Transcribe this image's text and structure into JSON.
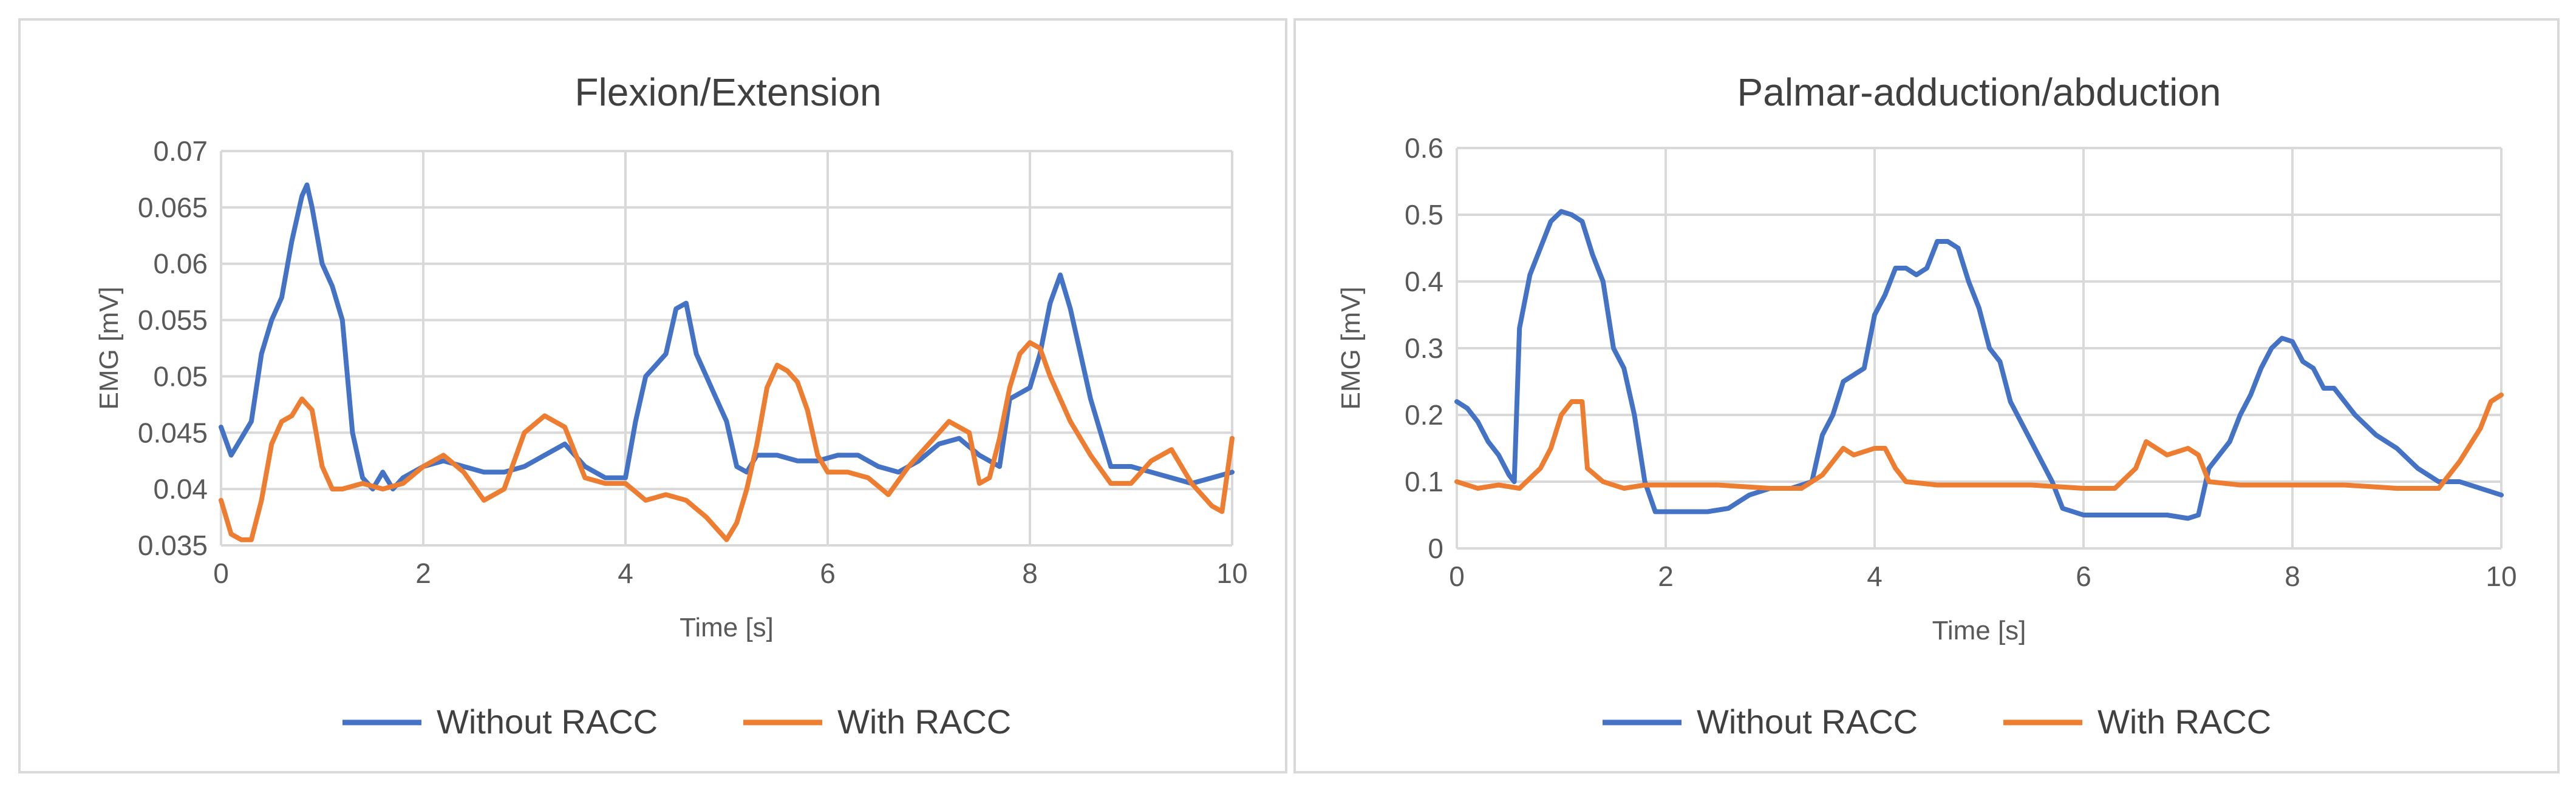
{
  "chart_data": [
    {
      "type": "line",
      "title": "Flexion/Extension",
      "xlabel": "Time [s]",
      "ylabel": "EMG [mV]",
      "xlim": [
        0,
        10
      ],
      "ylim": [
        0.035,
        0.07
      ],
      "x_ticks": [
        0,
        2,
        4,
        6,
        8,
        10
      ],
      "y_ticks": [
        0.035,
        0.04,
        0.045,
        0.05,
        0.055,
        0.06,
        0.065,
        0.07
      ],
      "x_tick_labels": [
        "0",
        "2",
        "4",
        "6",
        "8",
        "10"
      ],
      "y_tick_labels": [
        "0.035",
        "0.04",
        "0.045",
        "0.05",
        "0.055",
        "0.06",
        "0.065",
        "0.07"
      ],
      "grid": true,
      "legend_position": "bottom",
      "series": [
        {
          "name": "Without RACC",
          "color": "#4472c4",
          "points": [
            [
              0,
              0.0455
            ],
            [
              0.1,
              0.043
            ],
            [
              0.2,
              0.0445
            ],
            [
              0.3,
              0.046
            ],
            [
              0.4,
              0.052
            ],
            [
              0.5,
              0.055
            ],
            [
              0.6,
              0.057
            ],
            [
              0.7,
              0.062
            ],
            [
              0.8,
              0.066
            ],
            [
              0.85,
              0.067
            ],
            [
              0.9,
              0.065
            ],
            [
              1.0,
              0.06
            ],
            [
              1.1,
              0.058
            ],
            [
              1.2,
              0.055
            ],
            [
              1.3,
              0.045
            ],
            [
              1.4,
              0.041
            ],
            [
              1.5,
              0.04
            ],
            [
              1.6,
              0.0415
            ],
            [
              1.7,
              0.04
            ],
            [
              1.8,
              0.041
            ],
            [
              2.0,
              0.042
            ],
            [
              2.2,
              0.0425
            ],
            [
              2.4,
              0.042
            ],
            [
              2.6,
              0.0415
            ],
            [
              2.8,
              0.0415
            ],
            [
              3.0,
              0.042
            ],
            [
              3.2,
              0.043
            ],
            [
              3.4,
              0.044
            ],
            [
              3.6,
              0.042
            ],
            [
              3.8,
              0.041
            ],
            [
              4.0,
              0.041
            ],
            [
              4.1,
              0.046
            ],
            [
              4.2,
              0.05
            ],
            [
              4.3,
              0.051
            ],
            [
              4.4,
              0.052
            ],
            [
              4.5,
              0.056
            ],
            [
              4.6,
              0.0565
            ],
            [
              4.7,
              0.052
            ],
            [
              4.8,
              0.05
            ],
            [
              4.9,
              0.048
            ],
            [
              5.0,
              0.046
            ],
            [
              5.1,
              0.042
            ],
            [
              5.2,
              0.0415
            ],
            [
              5.3,
              0.043
            ],
            [
              5.5,
              0.043
            ],
            [
              5.7,
              0.0425
            ],
            [
              5.9,
              0.0425
            ],
            [
              6.1,
              0.043
            ],
            [
              6.3,
              0.043
            ],
            [
              6.5,
              0.042
            ],
            [
              6.7,
              0.0415
            ],
            [
              6.9,
              0.0425
            ],
            [
              7.1,
              0.044
            ],
            [
              7.3,
              0.0445
            ],
            [
              7.5,
              0.043
            ],
            [
              7.7,
              0.042
            ],
            [
              7.8,
              0.048
            ],
            [
              8.0,
              0.049
            ],
            [
              8.1,
              0.052
            ],
            [
              8.2,
              0.0565
            ],
            [
              8.3,
              0.059
            ],
            [
              8.4,
              0.056
            ],
            [
              8.5,
              0.052
            ],
            [
              8.6,
              0.048
            ],
            [
              8.7,
              0.045
            ],
            [
              8.8,
              0.042
            ],
            [
              9.0,
              0.042
            ],
            [
              9.2,
              0.0415
            ],
            [
              9.4,
              0.041
            ],
            [
              9.6,
              0.0405
            ],
            [
              9.8,
              0.041
            ],
            [
              10.0,
              0.0415
            ]
          ]
        },
        {
          "name": "With RACC",
          "color": "#ed7d31",
          "points": [
            [
              0,
              0.039
            ],
            [
              0.1,
              0.036
            ],
            [
              0.2,
              0.0355
            ],
            [
              0.3,
              0.0355
            ],
            [
              0.4,
              0.039
            ],
            [
              0.5,
              0.044
            ],
            [
              0.6,
              0.046
            ],
            [
              0.7,
              0.0465
            ],
            [
              0.8,
              0.048
            ],
            [
              0.9,
              0.047
            ],
            [
              1.0,
              0.042
            ],
            [
              1.1,
              0.04
            ],
            [
              1.2,
              0.04
            ],
            [
              1.4,
              0.0405
            ],
            [
              1.6,
              0.04
            ],
            [
              1.8,
              0.0405
            ],
            [
              2.0,
              0.042
            ],
            [
              2.2,
              0.043
            ],
            [
              2.4,
              0.0415
            ],
            [
              2.6,
              0.039
            ],
            [
              2.8,
              0.04
            ],
            [
              3.0,
              0.045
            ],
            [
              3.2,
              0.0465
            ],
            [
              3.4,
              0.0455
            ],
            [
              3.6,
              0.041
            ],
            [
              3.8,
              0.0405
            ],
            [
              4.0,
              0.0405
            ],
            [
              4.2,
              0.039
            ],
            [
              4.4,
              0.0395
            ],
            [
              4.6,
              0.039
            ],
            [
              4.8,
              0.0375
            ],
            [
              5.0,
              0.0355
            ],
            [
              5.1,
              0.037
            ],
            [
              5.2,
              0.04
            ],
            [
              5.3,
              0.044
            ],
            [
              5.4,
              0.049
            ],
            [
              5.5,
              0.051
            ],
            [
              5.6,
              0.0505
            ],
            [
              5.7,
              0.0495
            ],
            [
              5.8,
              0.047
            ],
            [
              5.9,
              0.043
            ],
            [
              6.0,
              0.0415
            ],
            [
              6.2,
              0.0415
            ],
            [
              6.4,
              0.041
            ],
            [
              6.6,
              0.0395
            ],
            [
              6.8,
              0.042
            ],
            [
              7.0,
              0.044
            ],
            [
              7.2,
              0.046
            ],
            [
              7.4,
              0.045
            ],
            [
              7.5,
              0.0405
            ],
            [
              7.6,
              0.041
            ],
            [
              7.7,
              0.0445
            ],
            [
              7.8,
              0.049
            ],
            [
              7.9,
              0.052
            ],
            [
              8.0,
              0.053
            ],
            [
              8.1,
              0.0525
            ],
            [
              8.2,
              0.05
            ],
            [
              8.4,
              0.046
            ],
            [
              8.6,
              0.043
            ],
            [
              8.8,
              0.0405
            ],
            [
              9.0,
              0.0405
            ],
            [
              9.2,
              0.0425
            ],
            [
              9.4,
              0.0435
            ],
            [
              9.6,
              0.0405
            ],
            [
              9.8,
              0.0385
            ],
            [
              9.9,
              0.038
            ],
            [
              10.0,
              0.0445
            ]
          ]
        }
      ]
    },
    {
      "type": "line",
      "title": "Palmar-adduction/abduction",
      "xlabel": "Time [s]",
      "ylabel": "EMG [mV]",
      "xlim": [
        0,
        10
      ],
      "ylim": [
        0,
        0.6
      ],
      "x_ticks": [
        0,
        2,
        4,
        6,
        8,
        10
      ],
      "y_ticks": [
        0,
        0.1,
        0.2,
        0.3,
        0.4,
        0.5,
        0.6
      ],
      "x_tick_labels": [
        "0",
        "2",
        "4",
        "6",
        "8",
        "10"
      ],
      "y_tick_labels": [
        "0",
        "0.1",
        "0.2",
        "0.3",
        "0.4",
        "0.5",
        "0.6"
      ],
      "grid": true,
      "legend_position": "bottom",
      "series": [
        {
          "name": "Without RACC",
          "color": "#4472c4",
          "points": [
            [
              0,
              0.22
            ],
            [
              0.1,
              0.21
            ],
            [
              0.2,
              0.19
            ],
            [
              0.3,
              0.16
            ],
            [
              0.4,
              0.14
            ],
            [
              0.5,
              0.11
            ],
            [
              0.55,
              0.1
            ],
            [
              0.6,
              0.33
            ],
            [
              0.7,
              0.41
            ],
            [
              0.8,
              0.45
            ],
            [
              0.9,
              0.49
            ],
            [
              1.0,
              0.505
            ],
            [
              1.1,
              0.5
            ],
            [
              1.2,
              0.49
            ],
            [
              1.3,
              0.44
            ],
            [
              1.4,
              0.4
            ],
            [
              1.5,
              0.3
            ],
            [
              1.6,
              0.27
            ],
            [
              1.7,
              0.2
            ],
            [
              1.8,
              0.1
            ],
            [
              1.9,
              0.055
            ],
            [
              2.0,
              0.055
            ],
            [
              2.2,
              0.055
            ],
            [
              2.4,
              0.055
            ],
            [
              2.6,
              0.06
            ],
            [
              2.8,
              0.08
            ],
            [
              3.0,
              0.09
            ],
            [
              3.2,
              0.09
            ],
            [
              3.4,
              0.1
            ],
            [
              3.5,
              0.17
            ],
            [
              3.6,
              0.2
            ],
            [
              3.7,
              0.25
            ],
            [
              3.8,
              0.26
            ],
            [
              3.9,
              0.27
            ],
            [
              4.0,
              0.35
            ],
            [
              4.1,
              0.38
            ],
            [
              4.2,
              0.42
            ],
            [
              4.3,
              0.42
            ],
            [
              4.4,
              0.41
            ],
            [
              4.5,
              0.42
            ],
            [
              4.6,
              0.46
            ],
            [
              4.7,
              0.46
            ],
            [
              4.8,
              0.45
            ],
            [
              4.9,
              0.4
            ],
            [
              5.0,
              0.36
            ],
            [
              5.1,
              0.3
            ],
            [
              5.2,
              0.28
            ],
            [
              5.3,
              0.22
            ],
            [
              5.5,
              0.16
            ],
            [
              5.7,
              0.1
            ],
            [
              5.8,
              0.06
            ],
            [
              6.0,
              0.05
            ],
            [
              6.2,
              0.05
            ],
            [
              6.5,
              0.05
            ],
            [
              6.8,
              0.05
            ],
            [
              7.0,
              0.045
            ],
            [
              7.1,
              0.05
            ],
            [
              7.2,
              0.12
            ],
            [
              7.3,
              0.14
            ],
            [
              7.4,
              0.16
            ],
            [
              7.5,
              0.2
            ],
            [
              7.6,
              0.23
            ],
            [
              7.7,
              0.27
            ],
            [
              7.8,
              0.3
            ],
            [
              7.9,
              0.315
            ],
            [
              8.0,
              0.31
            ],
            [
              8.1,
              0.28
            ],
            [
              8.2,
              0.27
            ],
            [
              8.3,
              0.24
            ],
            [
              8.4,
              0.24
            ],
            [
              8.5,
              0.22
            ],
            [
              8.6,
              0.2
            ],
            [
              8.8,
              0.17
            ],
            [
              9.0,
              0.15
            ],
            [
              9.2,
              0.12
            ],
            [
              9.4,
              0.1
            ],
            [
              9.6,
              0.1
            ],
            [
              9.8,
              0.09
            ],
            [
              10.0,
              0.08
            ]
          ]
        },
        {
          "name": "With RACC",
          "color": "#ed7d31",
          "points": [
            [
              0,
              0.1
            ],
            [
              0.2,
              0.09
            ],
            [
              0.4,
              0.095
            ],
            [
              0.6,
              0.09
            ],
            [
              0.8,
              0.12
            ],
            [
              0.9,
              0.15
            ],
            [
              1.0,
              0.2
            ],
            [
              1.1,
              0.22
            ],
            [
              1.2,
              0.22
            ],
            [
              1.25,
              0.12
            ],
            [
              1.4,
              0.1
            ],
            [
              1.6,
              0.09
            ],
            [
              1.8,
              0.095
            ],
            [
              2.0,
              0.095
            ],
            [
              2.5,
              0.095
            ],
            [
              3.0,
              0.09
            ],
            [
              3.3,
              0.09
            ],
            [
              3.5,
              0.11
            ],
            [
              3.7,
              0.15
            ],
            [
              3.8,
              0.14
            ],
            [
              4.0,
              0.15
            ],
            [
              4.1,
              0.15
            ],
            [
              4.2,
              0.12
            ],
            [
              4.3,
              0.1
            ],
            [
              4.6,
              0.095
            ],
            [
              5.0,
              0.095
            ],
            [
              5.5,
              0.095
            ],
            [
              6.0,
              0.09
            ],
            [
              6.3,
              0.09
            ],
            [
              6.5,
              0.12
            ],
            [
              6.6,
              0.16
            ],
            [
              6.8,
              0.14
            ],
            [
              7.0,
              0.15
            ],
            [
              7.1,
              0.14
            ],
            [
              7.2,
              0.1
            ],
            [
              7.5,
              0.095
            ],
            [
              8.0,
              0.095
            ],
            [
              8.5,
              0.095
            ],
            [
              9.0,
              0.09
            ],
            [
              9.4,
              0.09
            ],
            [
              9.6,
              0.13
            ],
            [
              9.8,
              0.18
            ],
            [
              9.9,
              0.22
            ],
            [
              10.0,
              0.23
            ]
          ]
        }
      ]
    }
  ]
}
